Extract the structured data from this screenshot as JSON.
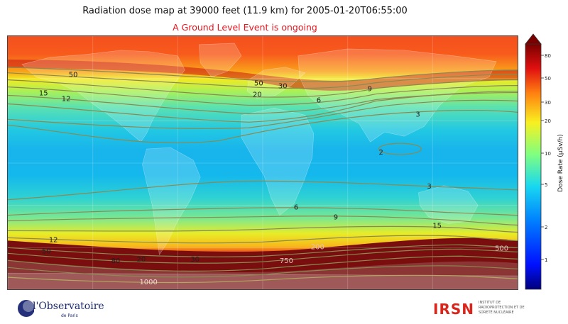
{
  "title": "Radiation dose map at 39000 feet (11.9 km) for 2005-01-20T06:55:00",
  "subtitle": "A Ground Level Event is ongoing",
  "colorbar": {
    "label": "Dose Rate (µSv/h)",
    "ticks": [
      "80",
      "50",
      "30",
      "20",
      "10",
      "5",
      "2",
      "1"
    ]
  },
  "contour_labels": [
    "50",
    "15",
    "12",
    "50",
    "30",
    "20",
    "9",
    "6",
    "3",
    "2",
    "3",
    "6",
    "9",
    "15",
    "12",
    "50",
    "80",
    "20",
    "30",
    "200",
    "500",
    "750",
    "1000"
  ],
  "logos": {
    "observatoire": "l'Observatoire",
    "observatoire_sub": "de Paris",
    "irsn": "IRSN",
    "irsn_sub": "INSTITUT DE RADIOPROTECTION ET DE SÛRETÉ NUCLÉAIRE"
  },
  "colors": {
    "subtitle": "#e8141e",
    "contour": "#8a8a52",
    "low_dose": "#0000c8",
    "high_dose": "#800000"
  }
}
